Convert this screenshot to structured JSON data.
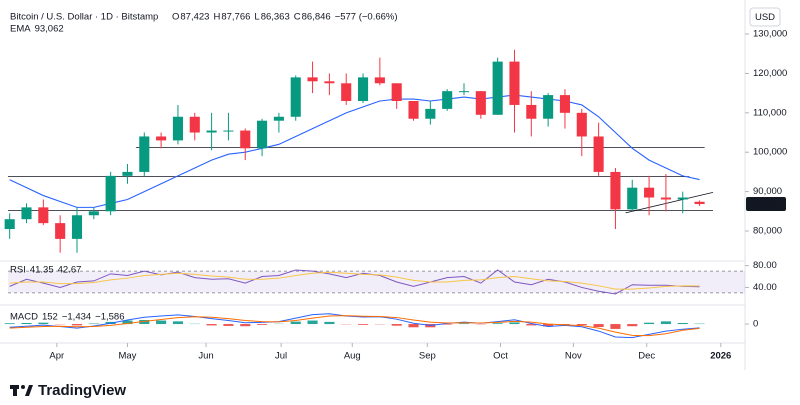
{
  "brand": "TradingView",
  "chart_data": {
    "type": "candlestick",
    "title": "Bitcoin / U.S. Dollar · 1D · Bitstamp",
    "ohlc": [
      {
        "key": "O",
        "value": "87,423"
      },
      {
        "key": "H",
        "value": "87,766"
      },
      {
        "key": "L",
        "value": "86,363"
      },
      {
        "key": "C",
        "value": "86,846"
      }
    ],
    "change": "−577 (−0.66%)",
    "currency": "USD",
    "up_color": "#089981",
    "down_color": "#f23645",
    "open": [
      80500,
      83000,
      86000,
      82000,
      78000,
      84000,
      85000,
      94000,
      95000,
      104000,
      103000,
      109000,
      105000,
      105500,
      105500,
      101000,
      108000,
      109000,
      119000,
      118000,
      117500,
      113000,
      119000,
      117500,
      113000,
      108500,
      111000,
      115500,
      115500,
      109500,
      123000,
      112000,
      108500,
      114500,
      110000,
      104000,
      95000,
      85500,
      91000,
      88500,
      88000,
      87423
    ],
    "high": [
      84500,
      87000,
      88000,
      84000,
      86000,
      86000,
      95000,
      97000,
      105000,
      105000,
      112000,
      110000,
      110000,
      110000,
      106000,
      108500,
      110000,
      119500,
      123000,
      120000,
      120000,
      120000,
      124000,
      117500,
      113000,
      113000,
      116000,
      117500,
      115500,
      124000,
      126000,
      115500,
      115000,
      116000,
      111000,
      107500,
      96000,
      93000,
      94000,
      94500,
      90000,
      87766
    ],
    "low": [
      78000,
      82000,
      81500,
      74500,
      74500,
      83000,
      84000,
      92000,
      94000,
      101000,
      102000,
      103000,
      100500,
      103000,
      98000,
      99000,
      105000,
      108000,
      115000,
      114500,
      112000,
      112500,
      117000,
      111000,
      108000,
      107000,
      110500,
      114500,
      108500,
      109500,
      105000,
      104000,
      106500,
      106000,
      99000,
      94000,
      80500,
      85000,
      84000,
      85000,
      84500,
      86363
    ],
    "close": [
      83000,
      86000,
      82000,
      78000,
      84000,
      85000,
      94000,
      95000,
      104000,
      103000,
      109000,
      105000,
      105500,
      105500,
      101000,
      108000,
      109000,
      119000,
      118000,
      117500,
      113000,
      119000,
      117500,
      113000,
      108500,
      111000,
      115500,
      115500,
      109500,
      123000,
      112000,
      108500,
      114500,
      110000,
      104000,
      95000,
      85500,
      91000,
      88500,
      88000,
      88500,
      86846
    ],
    "xlim": [
      -0.1,
      43.7
    ],
    "xticks": [
      {
        "value": 2.8,
        "label": "Apr"
      },
      {
        "value": 7.0,
        "label": "May"
      },
      {
        "value": 11.67,
        "label": "Jun"
      },
      {
        "value": 16.13,
        "label": "Jul"
      },
      {
        "value": 20.36,
        "label": "Aug"
      },
      {
        "value": 24.82,
        "label": "Sep"
      },
      {
        "value": 29.17,
        "label": "Oct"
      },
      {
        "value": 33.5,
        "label": "Nov"
      },
      {
        "value": 37.86,
        "label": "Dec"
      },
      {
        "value": 42.26,
        "label": "2026"
      }
    ],
    "ylim": [
      73150,
      136100
    ],
    "yticks": [
      {
        "value": 80000,
        "label": "80,000"
      },
      {
        "value": 90000,
        "label": "90,000"
      },
      {
        "value": 100000,
        "label": "100,000"
      },
      {
        "value": 110000,
        "label": "110,000"
      },
      {
        "value": 120000,
        "label": "120,000"
      },
      {
        "value": 130000,
        "label": "130,000"
      }
    ],
    "ema": {
      "name": "EMA",
      "label": "93,062",
      "color": "#2962ff",
      "values": [
        93000,
        91000,
        89000,
        87500,
        86000,
        86000,
        87000,
        88000,
        90000,
        92000,
        94000,
        96000,
        98000,
        99500,
        100000,
        101000,
        102000,
        104000,
        106000,
        108000,
        110000,
        111500,
        113000,
        113500,
        113500,
        113000,
        113500,
        114000,
        113500,
        114000,
        114500,
        114000,
        113500,
        113000,
        112000,
        109000,
        105000,
        101000,
        98000,
        96000,
        94000,
        93062
      ]
    },
    "levels": [
      101200,
      93800,
      85200
    ],
    "trendline": [
      [
        36.6,
        84600
      ],
      [
        41.8,
        89800
      ]
    ],
    "rsi": {
      "name": "RSI",
      "labels": [
        "41.35",
        "42.67"
      ],
      "ylim": [
        13.3,
        86.7
      ],
      "yticks": [
        {
          "value": 80,
          "label": "80.00"
        },
        {
          "value": 40,
          "label": "40.00"
        }
      ],
      "bands": [
        70,
        30
      ],
      "series": [
        {
          "color": "#7e57c2",
          "values": [
            42,
            55,
            48,
            40,
            50,
            52,
            65,
            62,
            70,
            63,
            68,
            58,
            55,
            56,
            48,
            60,
            62,
            72,
            70,
            65,
            58,
            66,
            62,
            50,
            42,
            50,
            58,
            60,
            48,
            72,
            50,
            45,
            55,
            50,
            40,
            33,
            28,
            45,
            44,
            44,
            42,
            41.35
          ]
        },
        {
          "color": "#f7c548",
          "values": [
            48,
            50,
            50,
            47,
            47,
            49,
            54,
            57,
            62,
            64,
            66,
            64,
            61,
            59,
            55,
            55,
            57,
            62,
            66,
            68,
            66,
            64,
            63,
            59,
            53,
            50,
            50,
            53,
            54,
            58,
            60,
            56,
            52,
            51,
            48,
            43,
            37,
            37,
            39,
            42,
            43,
            42.67
          ]
        }
      ]
    },
    "macd": {
      "name": "MACD",
      "labels": [
        "152",
        "−1,434",
        "−1,586"
      ],
      "ylim": [
        -5900,
        5200
      ],
      "yticks": [
        0
      ],
      "histogram": {
        "up_color": "#26a69a",
        "down_color": "#ef5350",
        "values": [
          300,
          400,
          500,
          -100,
          -500,
          200,
          800,
          1300,
          1500,
          1300,
          1000,
          100,
          -500,
          -700,
          -800,
          -300,
          100,
          900,
          1300,
          800,
          -100,
          -300,
          -100,
          -600,
          -1200,
          -1200,
          -200,
          200,
          -100,
          300,
          600,
          -500,
          -900,
          -200,
          -400,
          -1100,
          -1800,
          -800,
          500,
          1000,
          400,
          152
        ]
      },
      "series": [
        {
          "color": "#2962ff",
          "values": [
            -1200,
            -800,
            -400,
            -900,
            -1500,
            -700,
            300,
            1500,
            2500,
            3000,
            3400,
            2800,
            2000,
            1300,
            500,
            600,
            900,
            2200,
            3500,
            3800,
            3000,
            2600,
            2700,
            1800,
            300,
            -500,
            200,
            700,
            300,
            900,
            1600,
            200,
            -900,
            -500,
            -1000,
            -2600,
            -4800,
            -5000,
            -3800,
            -2600,
            -1900,
            -1434
          ]
        },
        {
          "color": "#ff6d00",
          "values": [
            -1500,
            -1200,
            -900,
            -800,
            -1000,
            -900,
            -500,
            200,
            1000,
            1700,
            2400,
            2700,
            2500,
            2000,
            1300,
            900,
            800,
            1300,
            2200,
            3000,
            3100,
            2900,
            2800,
            2400,
            1500,
            700,
            400,
            500,
            400,
            600,
            1000,
            700,
            0,
            -300,
            -600,
            -1500,
            -3000,
            -4200,
            -4300,
            -3600,
            -2300,
            -1586
          ]
        }
      ]
    }
  }
}
